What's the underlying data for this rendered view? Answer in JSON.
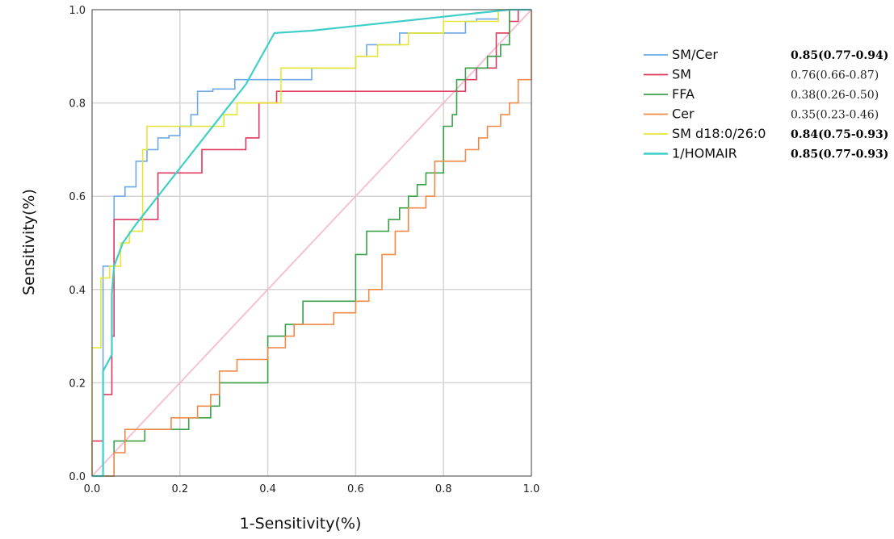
{
  "chart_data": {
    "type": "line",
    "title": "",
    "xlabel": "1-Sensitivity(%)",
    "ylabel": "Sensitivity(%)",
    "xlim": [
      0,
      1
    ],
    "ylim": [
      0,
      1
    ],
    "ticks": [
      "0.0",
      "0.2",
      "0.4",
      "0.6",
      "0.8",
      "1.0"
    ],
    "tick_values": [
      0,
      0.2,
      0.4,
      0.6,
      0.8,
      1.0
    ],
    "grid": true,
    "legend_position": "right",
    "reference_line": {
      "x": [
        0,
        1
      ],
      "y": [
        0,
        1
      ],
      "color": "#f6bcd0"
    },
    "series": [
      {
        "name": "SM/Cer",
        "auc": "0.85(0.77-0.94)",
        "auc_bold": true,
        "color": "#6fa8e8",
        "x": [
          0,
          0.025,
          0.025,
          0.05,
          0.05,
          0.075,
          0.075,
          0.1,
          0.1,
          0.125,
          0.125,
          0.15,
          0.15,
          0.175,
          0.175,
          0.2,
          0.2,
          0.225,
          0.225,
          0.24,
          0.24,
          0.275,
          0.275,
          0.325,
          0.325,
          0.4,
          0.4,
          0.5,
          0.5,
          0.6,
          0.6,
          0.625,
          0.625,
          0.7,
          0.7,
          0.75,
          0.75,
          0.85,
          0.85,
          0.875,
          0.875,
          0.925,
          0.925,
          1.0
        ],
        "y": [
          0,
          0,
          0.45,
          0.45,
          0.6,
          0.6,
          0.62,
          0.62,
          0.675,
          0.675,
          0.7,
          0.7,
          0.725,
          0.725,
          0.73,
          0.73,
          0.75,
          0.75,
          0.775,
          0.775,
          0.825,
          0.825,
          0.83,
          0.83,
          0.85,
          0.85,
          0.85,
          0.85,
          0.875,
          0.875,
          0.9,
          0.9,
          0.925,
          0.925,
          0.95,
          0.95,
          0.95,
          0.95,
          0.975,
          0.975,
          0.98,
          0.98,
          1.0,
          1.0
        ]
      },
      {
        "name": "SM",
        "auc": "0.76(0.66-0.87)",
        "auc_bold": false,
        "color": "#e0385e",
        "x": [
          0,
          0,
          0.025,
          0.025,
          0.045,
          0.045,
          0.05,
          0.05,
          0.15,
          0.15,
          0.25,
          0.25,
          0.35,
          0.35,
          0.38,
          0.38,
          0.42,
          0.42,
          0.85,
          0.85,
          0.875,
          0.875,
          0.92,
          0.92,
          0.95,
          0.95,
          0.97,
          0.97,
          1.0
        ],
        "y": [
          0,
          0.075,
          0.075,
          0.175,
          0.175,
          0.3,
          0.3,
          0.55,
          0.55,
          0.65,
          0.65,
          0.7,
          0.7,
          0.725,
          0.725,
          0.8,
          0.8,
          0.825,
          0.825,
          0.85,
          0.85,
          0.875,
          0.875,
          0.95,
          0.95,
          0.975,
          0.975,
          1.0,
          1.0
        ]
      },
      {
        "name": "FFA",
        "auc": "0.38(0.26-0.50)",
        "auc_bold": false,
        "color": "#3aa048",
        "x": [
          0,
          0.05,
          0.05,
          0.12,
          0.12,
          0.22,
          0.22,
          0.27,
          0.27,
          0.29,
          0.29,
          0.4,
          0.4,
          0.44,
          0.44,
          0.48,
          0.48,
          0.5,
          0.5,
          0.6,
          0.6,
          0.625,
          0.625,
          0.65,
          0.65,
          0.675,
          0.675,
          0.7,
          0.7,
          0.72,
          0.72,
          0.74,
          0.74,
          0.76,
          0.76,
          0.8,
          0.8,
          0.82,
          0.82,
          0.83,
          0.83,
          0.85,
          0.85,
          0.9,
          0.9,
          0.93,
          0.93,
          0.95,
          0.95,
          1.0
        ],
        "y": [
          0,
          0,
          0.075,
          0.075,
          0.1,
          0.1,
          0.125,
          0.125,
          0.15,
          0.15,
          0.2,
          0.2,
          0.3,
          0.3,
          0.325,
          0.325,
          0.375,
          0.375,
          0.375,
          0.375,
          0.475,
          0.475,
          0.525,
          0.525,
          0.525,
          0.525,
          0.55,
          0.55,
          0.575,
          0.575,
          0.6,
          0.6,
          0.625,
          0.625,
          0.65,
          0.65,
          0.75,
          0.75,
          0.775,
          0.775,
          0.85,
          0.85,
          0.875,
          0.875,
          0.9,
          0.9,
          0.925,
          0.925,
          1.0,
          1.0
        ]
      },
      {
        "name": "Cer",
        "auc": "0.35(0.23-0.46)",
        "auc_bold": false,
        "color": "#f08a48",
        "x": [
          0,
          0.05,
          0.05,
          0.075,
          0.075,
          0.18,
          0.18,
          0.24,
          0.24,
          0.27,
          0.27,
          0.29,
          0.29,
          0.33,
          0.33,
          0.4,
          0.4,
          0.44,
          0.44,
          0.46,
          0.46,
          0.55,
          0.55,
          0.6,
          0.6,
          0.63,
          0.63,
          0.66,
          0.66,
          0.69,
          0.69,
          0.72,
          0.72,
          0.76,
          0.76,
          0.78,
          0.78,
          0.82,
          0.82,
          0.85,
          0.85,
          0.88,
          0.88,
          0.9,
          0.9,
          0.93,
          0.93,
          0.95,
          0.95,
          0.97,
          0.97,
          1.0,
          1.0
        ],
        "y": [
          0,
          0,
          0.05,
          0.05,
          0.1,
          0.1,
          0.125,
          0.125,
          0.15,
          0.15,
          0.175,
          0.175,
          0.225,
          0.225,
          0.25,
          0.25,
          0.275,
          0.275,
          0.3,
          0.3,
          0.325,
          0.325,
          0.35,
          0.35,
          0.375,
          0.375,
          0.4,
          0.4,
          0.475,
          0.475,
          0.525,
          0.525,
          0.575,
          0.575,
          0.6,
          0.6,
          0.675,
          0.675,
          0.675,
          0.675,
          0.7,
          0.7,
          0.725,
          0.725,
          0.75,
          0.75,
          0.775,
          0.775,
          0.8,
          0.8,
          0.85,
          0.85,
          1.0
        ]
      },
      {
        "name": "SM d18:0/26:0",
        "auc": "0.84(0.75-0.93)",
        "auc_bold": true,
        "color": "#e6e632",
        "x": [
          0,
          0,
          0.02,
          0.02,
          0.04,
          0.04,
          0.065,
          0.065,
          0.085,
          0.085,
          0.115,
          0.115,
          0.125,
          0.125,
          0.3,
          0.3,
          0.33,
          0.33,
          0.43,
          0.43,
          0.55,
          0.55,
          0.6,
          0.6,
          0.65,
          0.65,
          0.72,
          0.72,
          0.8,
          0.8,
          0.925,
          0.925,
          1.0
        ],
        "y": [
          0,
          0.275,
          0.275,
          0.425,
          0.425,
          0.45,
          0.45,
          0.5,
          0.5,
          0.525,
          0.525,
          0.7,
          0.7,
          0.75,
          0.75,
          0.775,
          0.775,
          0.8,
          0.8,
          0.875,
          0.875,
          0.875,
          0.875,
          0.9,
          0.9,
          0.925,
          0.925,
          0.95,
          0.95,
          0.975,
          0.975,
          1.0,
          1.0
        ]
      },
      {
        "name": "1/HOMAIR",
        "auc": "0.85(0.77-0.93)",
        "auc_bold": true,
        "color": "#3ecfc8",
        "x": [
          0,
          0.025,
          0.025,
          0.045,
          0.045,
          0.05,
          0.07,
          0.1,
          0.15,
          0.2,
          0.25,
          0.3,
          0.35,
          0.415,
          0.5,
          0.6,
          0.7,
          0.8,
          0.9,
          0.95,
          1.0
        ],
        "y": [
          0,
          0,
          0.225,
          0.26,
          0.39,
          0.45,
          0.5,
          0.54,
          0.6,
          0.66,
          0.72,
          0.78,
          0.84,
          0.95,
          0.955,
          0.965,
          0.975,
          0.985,
          0.995,
          1.0,
          1.0
        ]
      }
    ]
  }
}
